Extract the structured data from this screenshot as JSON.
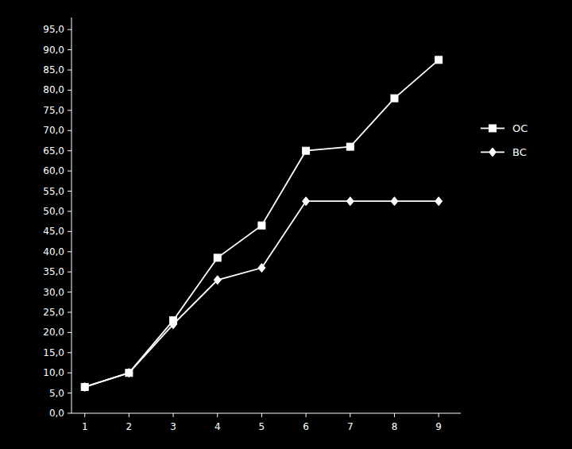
{
  "chart_data": {
    "type": "line",
    "x": [
      1,
      2,
      3,
      4,
      5,
      6,
      7,
      8,
      9
    ],
    "series": [
      {
        "name": "OC",
        "color": "#ffffff",
        "marker": "square",
        "values": [
          6.5,
          10.0,
          23.0,
          38.5,
          46.5,
          65.0,
          66.0,
          78.0,
          87.5
        ]
      },
      {
        "name": "BC",
        "color": "#ffffff",
        "marker": "diamond",
        "values": [
          6.5,
          10.0,
          22.0,
          33.0,
          36.0,
          52.5,
          52.5,
          52.5,
          52.5
        ]
      }
    ],
    "xlim": [
      0.7,
      9.5
    ],
    "ylim": [
      0.0,
      98.0
    ],
    "xticks": [
      1,
      2,
      3,
      4,
      5,
      6,
      7,
      8,
      9
    ],
    "yticks": [
      {
        "value": 0,
        "label": "0,0"
      },
      {
        "value": 5,
        "label": "5,0"
      },
      {
        "value": 10,
        "label": "10,0"
      },
      {
        "value": 15,
        "label": "15,0"
      },
      {
        "value": 20,
        "label": "20,0"
      },
      {
        "value": 25,
        "label": "25,0"
      },
      {
        "value": 30,
        "label": "30,0"
      },
      {
        "value": 35,
        "label": "35,0"
      },
      {
        "value": 40,
        "label": "40,0"
      },
      {
        "value": 45,
        "label": "45,0"
      },
      {
        "value": 50,
        "label": "50,0"
      },
      {
        "value": 55,
        "label": "55,0"
      },
      {
        "value": 60,
        "label": "60,0"
      },
      {
        "value": 65,
        "label": "65,0"
      },
      {
        "value": 70,
        "label": "70,0"
      },
      {
        "value": 75,
        "label": "75,0"
      },
      {
        "value": 80,
        "label": "80,0"
      },
      {
        "value": 85,
        "label": "85,0"
      },
      {
        "value": 90,
        "label": "90,0"
      },
      {
        "value": 95,
        "label": "95,0"
      }
    ],
    "grid": false,
    "legend": "right"
  }
}
